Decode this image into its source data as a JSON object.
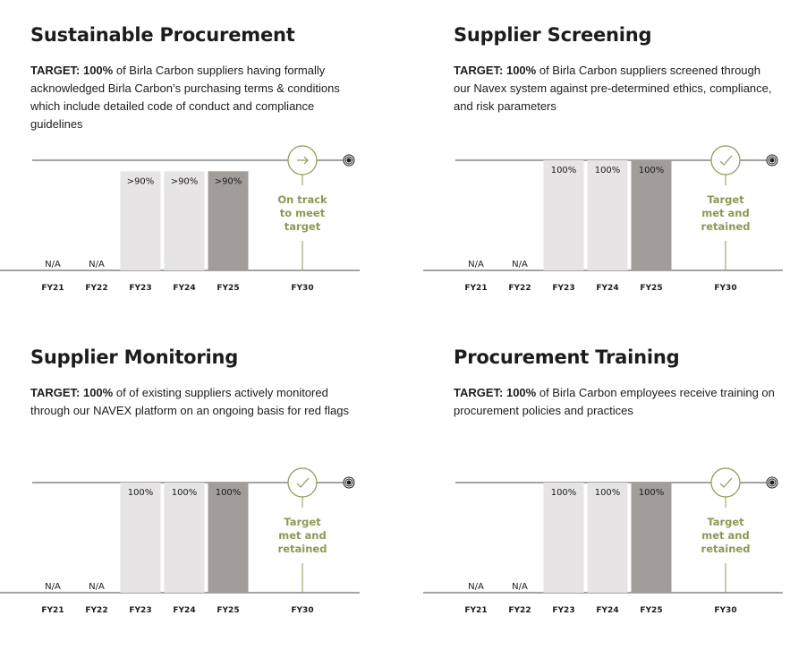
{
  "colors": {
    "bar_light": "#e6e4e4",
    "bar_dark": "#a19d99",
    "accent_green": "#8a9a55",
    "axis": "#4a4a4a"
  },
  "chart_data": [
    {
      "type": "bar",
      "title": "Sustainable Procurement",
      "target_label": "TARGET: 100%",
      "target_text": " of Birla Carbon suppliers having formally acknowledged Birla Carbon’s purchasing terms & conditions which include detailed code of conduct and compliance guidelines",
      "categories": [
        "FY21",
        "FY22",
        "FY23",
        "FY24",
        "FY25",
        "FY30"
      ],
      "value_labels": [
        "N/A",
        "N/A",
        ">90%",
        ">90%",
        ">90%",
        ""
      ],
      "values": [
        null,
        null,
        90,
        90,
        90,
        null
      ],
      "status_icon": "arrow-right-icon",
      "status_lines": [
        "On track",
        "to meet",
        "target"
      ],
      "target_icon": "target-icon",
      "ylim": [
        0,
        100
      ]
    },
    {
      "type": "bar",
      "title": "Supplier Screening",
      "target_label": "TARGET: 100%",
      "target_text": " of Birla Carbon suppliers screened through our Navex system against pre-determined ethics, compliance, and risk parameters",
      "categories": [
        "FY21",
        "FY22",
        "FY23",
        "FY24",
        "FY25",
        "FY30"
      ],
      "value_labels": [
        "N/A",
        "N/A",
        "100%",
        "100%",
        "100%",
        ""
      ],
      "values": [
        null,
        null,
        100,
        100,
        100,
        null
      ],
      "status_icon": "checkmark-icon",
      "status_lines": [
        "Target",
        "met and",
        "retained"
      ],
      "target_icon": "target-icon",
      "ylim": [
        0,
        100
      ]
    },
    {
      "type": "bar",
      "title": "Supplier Monitoring",
      "target_label": "TARGET: 100%",
      "target_text": " of of existing suppliers actively monitored through our NAVEX platform on an ongoing basis for red flags",
      "categories": [
        "FY21",
        "FY22",
        "FY23",
        "FY24",
        "FY25",
        "FY30"
      ],
      "value_labels": [
        "N/A",
        "N/A",
        "100%",
        "100%",
        "100%",
        ""
      ],
      "values": [
        null,
        null,
        100,
        100,
        100,
        null
      ],
      "status_icon": "checkmark-icon",
      "status_lines": [
        "Target",
        "met and",
        "retained"
      ],
      "target_icon": "target-icon",
      "ylim": [
        0,
        100
      ]
    },
    {
      "type": "bar",
      "title": "Procurement Training",
      "target_label": "TARGET: 100%",
      "target_text": " of Birla Carbon employees receive training on procurement policies and practices",
      "categories": [
        "FY21",
        "FY22",
        "FY23",
        "FY24",
        "FY25",
        "FY30"
      ],
      "value_labels": [
        "N/A",
        "N/A",
        "100%",
        "100%",
        "100%",
        ""
      ],
      "values": [
        null,
        null,
        100,
        100,
        100,
        null
      ],
      "status_icon": "checkmark-icon",
      "status_lines": [
        "Target",
        "met and",
        "retained"
      ],
      "target_icon": "target-icon",
      "ylim": [
        0,
        100
      ]
    }
  ]
}
